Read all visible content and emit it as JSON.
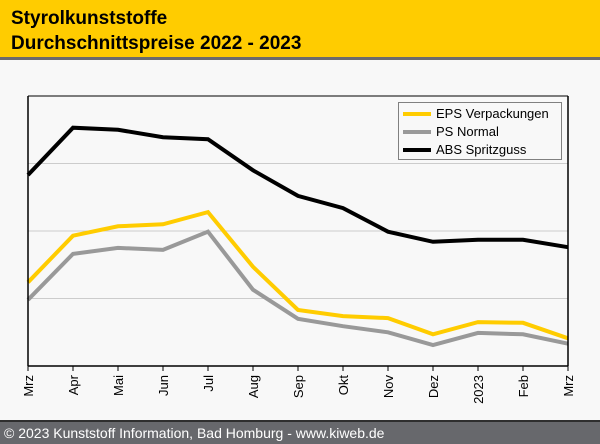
{
  "header": {
    "title_line1": "Styrolkunststoffe",
    "title_line2": "Durchschnittspreise 2022 - 2023"
  },
  "footer": {
    "copyright": "© 2023 Kunststoff Information, Bad Homburg - www.kiweb.de"
  },
  "chart_data": {
    "type": "line",
    "title": "Styrolkunststoffe Durchschnittspreise 2022 - 2023",
    "xlabel": "",
    "ylabel": "",
    "y_unit_note": "no y-axis labels shown; values are relative index (gridline spacing = 1)",
    "ylim": [
      0,
      4
    ],
    "y_gridlines": [
      1,
      2,
      3
    ],
    "grid": true,
    "legend_position": "top-right",
    "categories": [
      "Mrz",
      "Apr",
      "Mai",
      "Jun",
      "Jul",
      "Aug",
      "Sep",
      "Okt",
      "Nov",
      "Dez",
      "2023",
      "Feb",
      "Mrz"
    ],
    "series": [
      {
        "name": "EPS Verpackungen",
        "color": "#ffcc00",
        "values": [
          1.24,
          1.93,
          2.07,
          2.1,
          2.28,
          1.47,
          0.83,
          0.74,
          0.71,
          0.47,
          0.65,
          0.64,
          0.41
        ]
      },
      {
        "name": "PS Normal",
        "color": "#999999",
        "values": [
          0.98,
          1.66,
          1.75,
          1.72,
          1.99,
          1.13,
          0.7,
          0.59,
          0.5,
          0.31,
          0.49,
          0.47,
          0.33
        ]
      },
      {
        "name": "ABS Spritzguss",
        "color": "#000000",
        "values": [
          2.83,
          3.53,
          3.5,
          3.39,
          3.36,
          2.9,
          2.52,
          2.34,
          1.99,
          1.84,
          1.87,
          1.87,
          1.76
        ]
      }
    ]
  }
}
